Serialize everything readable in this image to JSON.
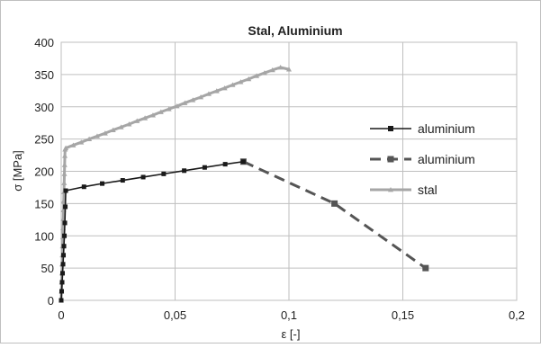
{
  "chart_data": {
    "type": "line",
    "title": "Stal, Aluminium",
    "xlabel": "ε [-]",
    "ylabel": "σ [MPa]",
    "xlim": [
      0,
      0.2
    ],
    "ylim": [
      0,
      400
    ],
    "x_ticks": [
      "0",
      "0,05",
      "0,1",
      "0,15",
      "0,2"
    ],
    "y_ticks": [
      "0",
      "50",
      "100",
      "150",
      "200",
      "250",
      "300",
      "350",
      "400"
    ],
    "grid": true,
    "legend_position": "right",
    "series": [
      {
        "name": "aluminium",
        "line_style": "solid",
        "marker": "square",
        "color": "#1a1a1a",
        "x": [
          0,
          0.0002,
          0.0004,
          0.0006,
          0.0008,
          0.001,
          0.0012,
          0.0014,
          0.0016,
          0.0018,
          0.002,
          0.01,
          0.018,
          0.027,
          0.036,
          0.045,
          0.054,
          0.063,
          0.072,
          0.08
        ],
        "y": [
          0,
          14,
          28,
          42,
          56,
          70,
          84,
          100,
          120,
          145,
          170,
          176,
          181,
          186,
          191,
          196,
          201,
          206,
          211,
          215
        ]
      },
      {
        "name": "aluminium",
        "line_style": "dashed",
        "marker": "square",
        "color": "#555555",
        "x": [
          0.08,
          0.12,
          0.16
        ],
        "y": [
          215,
          150,
          50
        ]
      },
      {
        "name": "stal",
        "line_style": "solid",
        "marker": "triangle",
        "color": "#a6a6a6",
        "x": [
          0,
          0.0001,
          0.0002,
          0.0003,
          0.0004,
          0.0005,
          0.0006,
          0.0007,
          0.0008,
          0.0009,
          0.001,
          0.0011,
          0.0012,
          0.0013,
          0.0014,
          0.0015,
          0.0016,
          0.0017,
          0.002,
          0.0053,
          0.0088,
          0.0123,
          0.0158,
          0.0193,
          0.0228,
          0.0263,
          0.0298,
          0.0333,
          0.0368,
          0.0403,
          0.0438,
          0.0473,
          0.0508,
          0.0543,
          0.0578,
          0.0613,
          0.0648,
          0.0683,
          0.0718,
          0.0753,
          0.0788,
          0.0823,
          0.0858,
          0.0893,
          0.0928,
          0.0963,
          0.1
        ],
        "y": [
          0,
          14,
          28,
          42,
          56,
          70,
          84,
          98,
          112,
          126,
          140,
          154,
          168,
          182,
          196,
          210,
          224,
          234,
          236,
          240.5,
          245,
          250,
          254.5,
          259,
          264,
          268.5,
          273,
          278,
          282.5,
          287,
          292,
          296.5,
          301,
          306,
          310.5,
          315,
          320,
          324.5,
          329,
          334,
          338.5,
          343,
          348,
          352.5,
          357,
          361,
          358
        ]
      }
    ]
  }
}
